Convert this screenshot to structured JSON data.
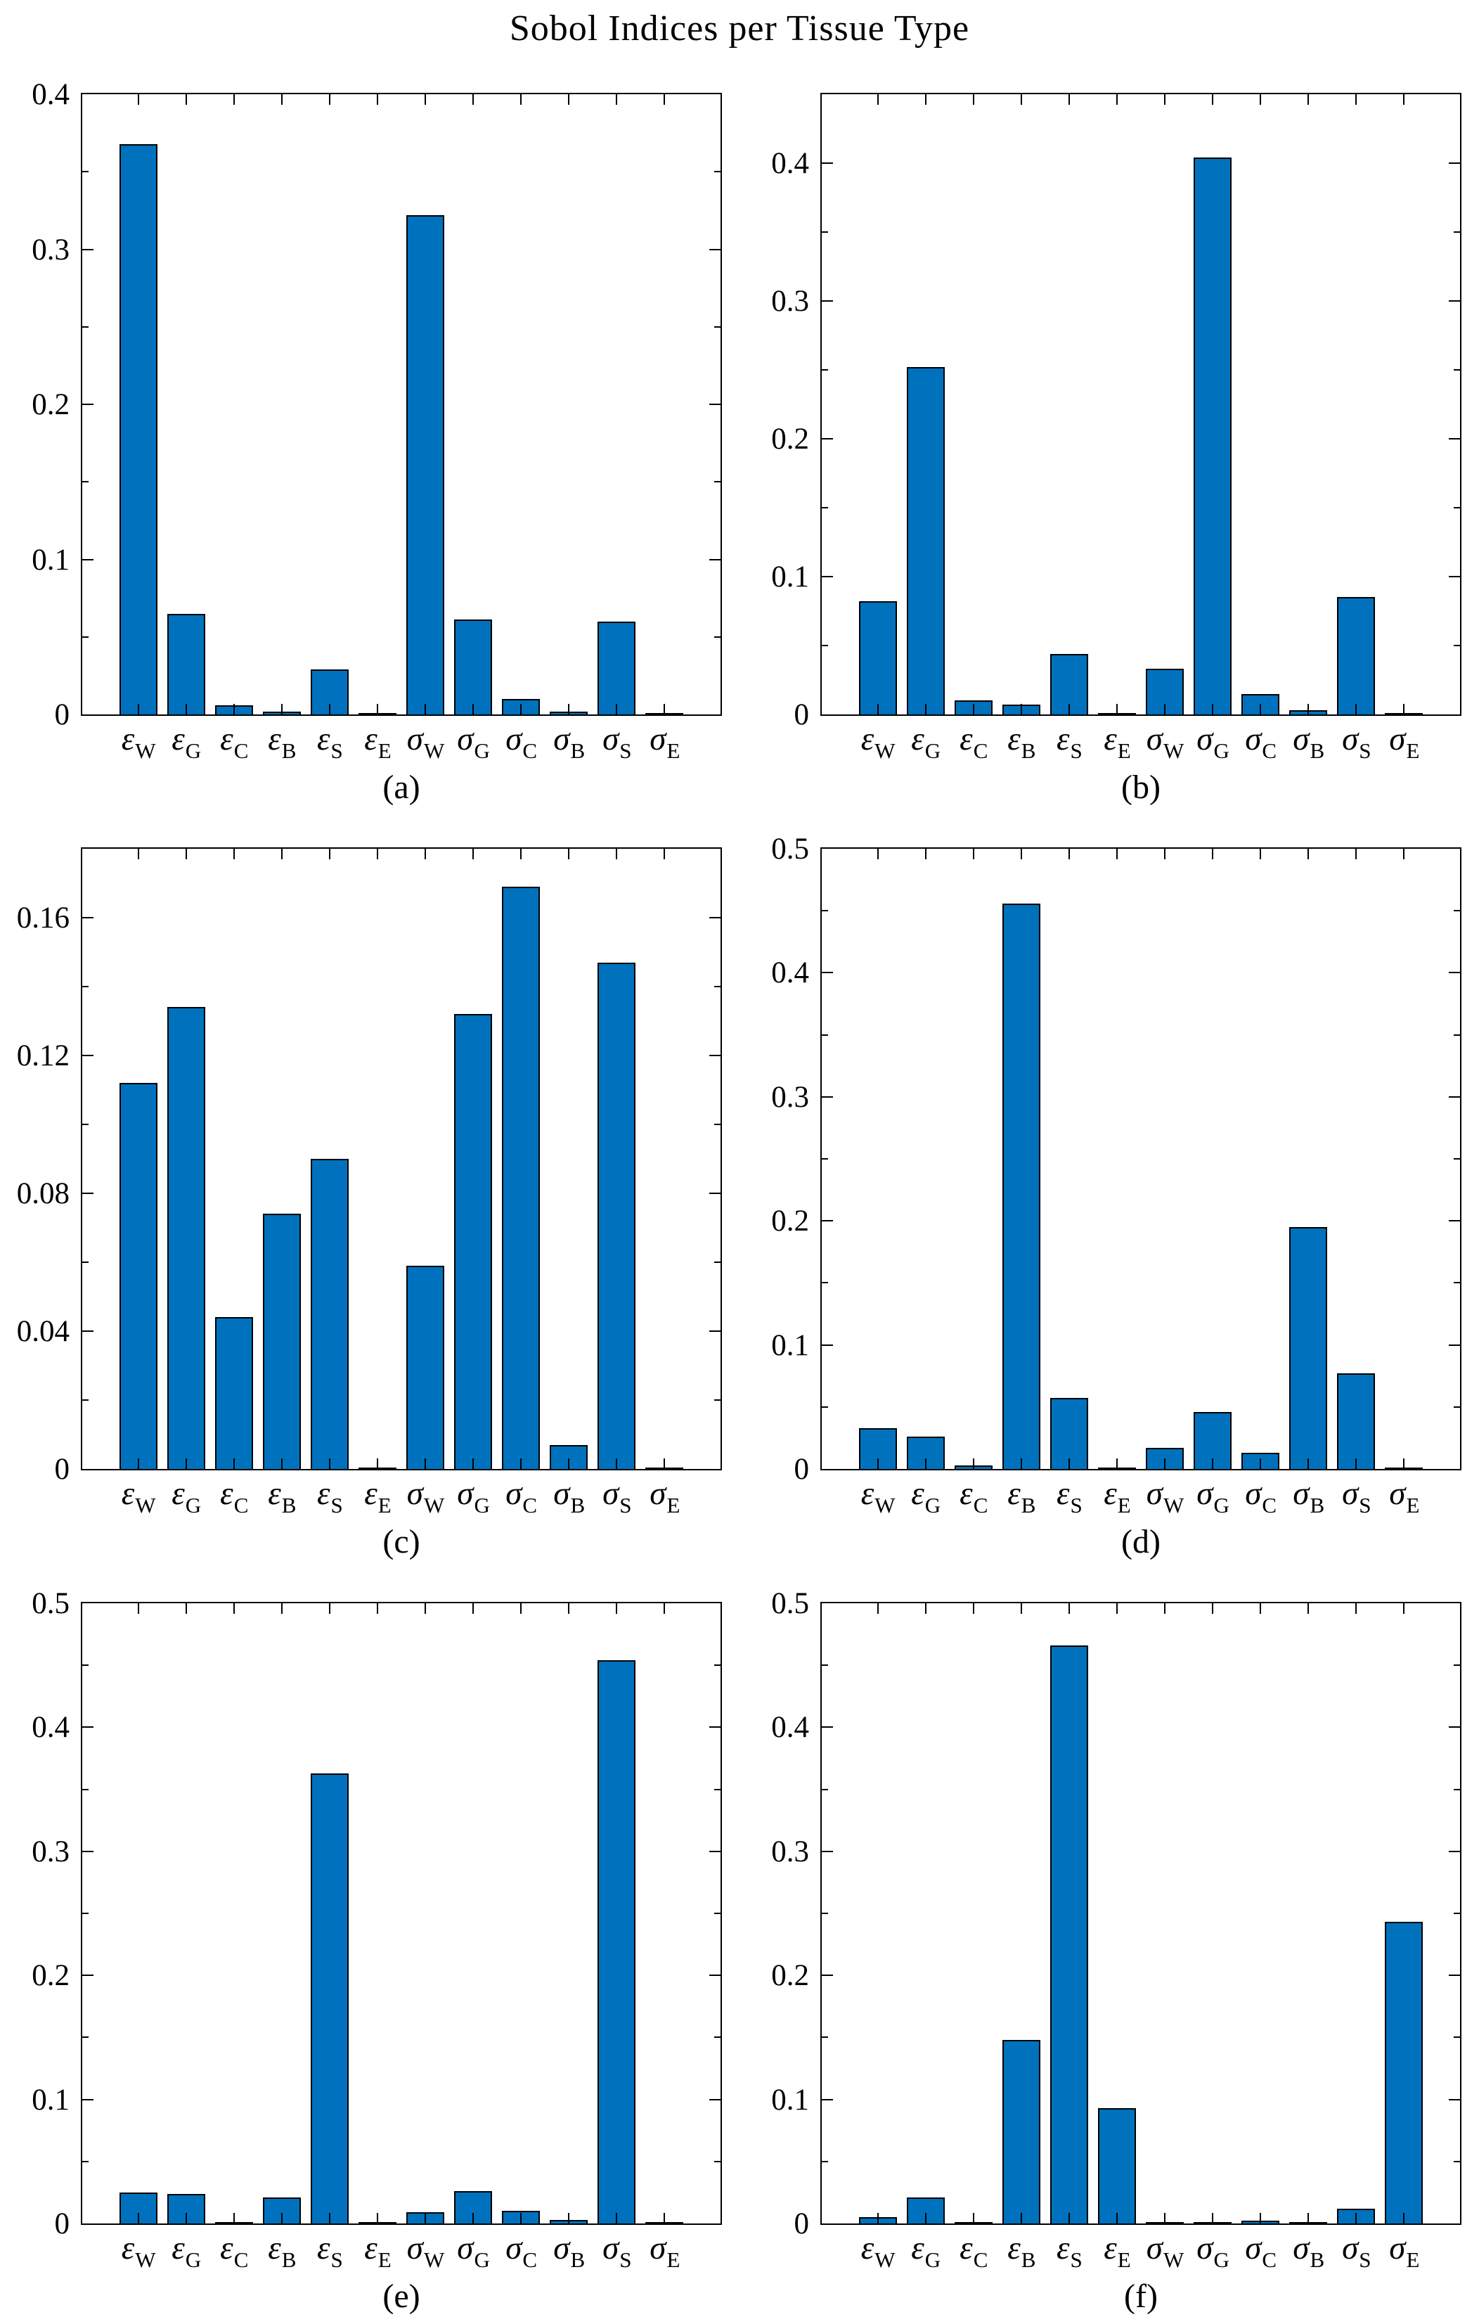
{
  "title": "Sobol Indices per Tissue Type",
  "style": {
    "bar_fill": "#0072BD",
    "bar_edge": "#000000",
    "axis_color": "#000000",
    "background": "#ffffff"
  },
  "categories": [
    {
      "sym": "ε",
      "sub": "W"
    },
    {
      "sym": "ε",
      "sub": "G"
    },
    {
      "sym": "ε",
      "sub": "C"
    },
    {
      "sym": "ε",
      "sub": "B"
    },
    {
      "sym": "ε",
      "sub": "S"
    },
    {
      "sym": "ε",
      "sub": "E"
    },
    {
      "sym": "σ",
      "sub": "W"
    },
    {
      "sym": "σ",
      "sub": "G"
    },
    {
      "sym": "σ",
      "sub": "C"
    },
    {
      "sym": "σ",
      "sub": "B"
    },
    {
      "sym": "σ",
      "sub": "S"
    },
    {
      "sym": "σ",
      "sub": "E"
    }
  ],
  "chart_data": [
    {
      "type": "bar",
      "panel_label": "(a)",
      "categories": [
        "εW",
        "εG",
        "εC",
        "εB",
        "εS",
        "εE",
        "σW",
        "σG",
        "σC",
        "σB",
        "σS",
        "σE"
      ],
      "values": [
        0.368,
        0.065,
        0.006,
        0.002,
        0.029,
        0.0005,
        0.322,
        0.061,
        0.01,
        0.002,
        0.06,
        0.0005
      ],
      "ylim": [
        0,
        0.4
      ],
      "yticks": [
        0,
        0.1,
        0.2,
        0.3,
        0.4
      ],
      "ytick_labels": [
        "0",
        "0.1",
        "0.2",
        "0.3",
        "0.4"
      ],
      "minor_tick_step": 0.05,
      "grid": false,
      "legend": null
    },
    {
      "type": "bar",
      "panel_label": "(b)",
      "categories": [
        "εW",
        "εG",
        "εC",
        "εB",
        "εS",
        "εE",
        "σW",
        "σG",
        "σC",
        "σB",
        "σS",
        "σE"
      ],
      "values": [
        0.082,
        0.252,
        0.01,
        0.007,
        0.044,
        0.001,
        0.033,
        0.404,
        0.015,
        0.003,
        0.085,
        0.001
      ],
      "ylim": [
        0,
        0.45
      ],
      "yticks": [
        0,
        0.1,
        0.2,
        0.3,
        0.4
      ],
      "ytick_labels": [
        "0",
        "0.1",
        "0.2",
        "0.3",
        "0.4"
      ],
      "minor_tick_step": 0.05,
      "grid": false,
      "legend": null
    },
    {
      "type": "bar",
      "panel_label": "(c)",
      "categories": [
        "εW",
        "εG",
        "εC",
        "εB",
        "εS",
        "εE",
        "σW",
        "σG",
        "σC",
        "σB",
        "σS",
        "σE"
      ],
      "values": [
        0.112,
        0.134,
        0.044,
        0.074,
        0.09,
        0.0005,
        0.059,
        0.132,
        0.169,
        0.007,
        0.147,
        0.0005
      ],
      "ylim": [
        0,
        0.18
      ],
      "yticks": [
        0,
        0.04,
        0.08,
        0.12,
        0.16
      ],
      "ytick_labels": [
        "0",
        "0.04",
        "0.08",
        "0.12",
        "0.16"
      ],
      "minor_tick_step": 0.02,
      "grid": false,
      "legend": null
    },
    {
      "type": "bar",
      "panel_label": "(d)",
      "categories": [
        "εW",
        "εG",
        "εC",
        "εB",
        "εS",
        "εE",
        "σW",
        "σG",
        "σC",
        "σB",
        "σS",
        "σE"
      ],
      "values": [
        0.033,
        0.026,
        0.003,
        0.456,
        0.057,
        0.0005,
        0.017,
        0.046,
        0.013,
        0.195,
        0.077,
        0.0005
      ],
      "ylim": [
        0,
        0.5
      ],
      "yticks": [
        0,
        0.1,
        0.2,
        0.3,
        0.4,
        0.5
      ],
      "ytick_labels": [
        "0",
        "0.1",
        "0.2",
        "0.3",
        "0.4",
        "0.5"
      ],
      "minor_tick_step": 0.05,
      "grid": false,
      "legend": null
    },
    {
      "type": "bar",
      "panel_label": "(e)",
      "categories": [
        "εW",
        "εG",
        "εC",
        "εB",
        "εS",
        "εE",
        "σW",
        "σG",
        "σC",
        "σB",
        "σS",
        "σE"
      ],
      "values": [
        0.025,
        0.024,
        0.001,
        0.021,
        0.363,
        0.0005,
        0.009,
        0.026,
        0.01,
        0.003,
        0.454,
        0.0005
      ],
      "ylim": [
        0,
        0.5
      ],
      "yticks": [
        0,
        0.1,
        0.2,
        0.3,
        0.4,
        0.5
      ],
      "ytick_labels": [
        "0",
        "0.1",
        "0.2",
        "0.3",
        "0.4",
        "0.5"
      ],
      "minor_tick_step": 0.05,
      "grid": false,
      "legend": null
    },
    {
      "type": "bar",
      "panel_label": "(f)",
      "categories": [
        "εW",
        "εG",
        "εC",
        "εB",
        "εS",
        "εE",
        "σW",
        "σG",
        "σC",
        "σB",
        "σS",
        "σE"
      ],
      "values": [
        0.005,
        0.021,
        0.001,
        0.148,
        0.466,
        0.093,
        0.0005,
        0.001,
        0.002,
        0.001,
        0.012,
        0.243
      ],
      "ylim": [
        0,
        0.5
      ],
      "yticks": [
        0,
        0.1,
        0.2,
        0.3,
        0.4,
        0.5
      ],
      "ytick_labels": [
        "0",
        "0.1",
        "0.2",
        "0.3",
        "0.4",
        "0.5"
      ],
      "minor_tick_step": 0.05,
      "grid": false,
      "legend": null
    }
  ]
}
